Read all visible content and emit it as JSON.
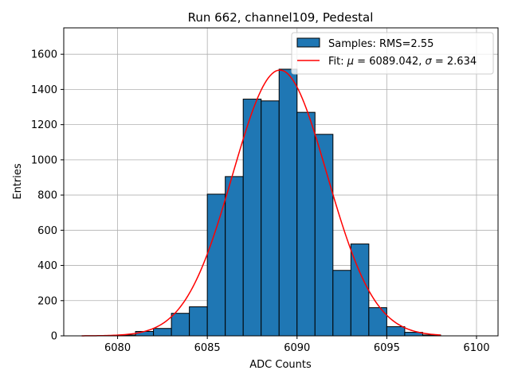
{
  "chart_data": {
    "type": "bar",
    "title": "Run 662, channel109, Pedestal",
    "xlabel": "ADC Counts",
    "ylabel": "Entries",
    "xlim": [
      6077,
      6101.2
    ],
    "ylim": [
      0,
      1750
    ],
    "xticks": [
      6080,
      6085,
      6090,
      6095,
      6100
    ],
    "yticks": [
      0,
      200,
      400,
      600,
      800,
      1000,
      1200,
      1400,
      1600
    ],
    "grid": true,
    "legend_position": "top-right",
    "histogram": {
      "name": "Samples: RMS=2.55",
      "color": "#1f77b4",
      "edge_color": "#000000",
      "bins": [
        {
          "left": 6080,
          "right": 6081,
          "count": 5
        },
        {
          "left": 6081,
          "right": 6082,
          "count": 25
        },
        {
          "left": 6082,
          "right": 6083,
          "count": 42
        },
        {
          "left": 6083,
          "right": 6084,
          "count": 128
        },
        {
          "left": 6084,
          "right": 6085,
          "count": 165
        },
        {
          "left": 6085,
          "right": 6086,
          "count": 805
        },
        {
          "left": 6086,
          "right": 6087,
          "count": 905
        },
        {
          "left": 6087,
          "right": 6088,
          "count": 1345
        },
        {
          "left": 6088,
          "right": 6089,
          "count": 1335
        },
        {
          "left": 6089,
          "right": 6090,
          "count": 1515
        },
        {
          "left": 6090,
          "right": 6091,
          "count": 1270
        },
        {
          "left": 6091,
          "right": 6092,
          "count": 1145
        },
        {
          "left": 6092,
          "right": 6093,
          "count": 372
        },
        {
          "left": 6093,
          "right": 6094,
          "count": 522
        },
        {
          "left": 6094,
          "right": 6095,
          "count": 160
        },
        {
          "left": 6095,
          "right": 6096,
          "count": 52
        },
        {
          "left": 6096,
          "right": 6097,
          "count": 20
        },
        {
          "left": 6097,
          "right": 6098,
          "count": 5
        }
      ]
    },
    "fit": {
      "name_prefix": "Fit: ",
      "mu_symbol": "μ",
      "mu_value": " = 6089.042, ",
      "sigma_symbol": "σ",
      "sigma_value": " = 2.634",
      "color": "#ff0000",
      "mu": 6089.042,
      "sigma": 2.634,
      "amplitude": 1510,
      "x_range": [
        6078,
        6098
      ]
    }
  }
}
